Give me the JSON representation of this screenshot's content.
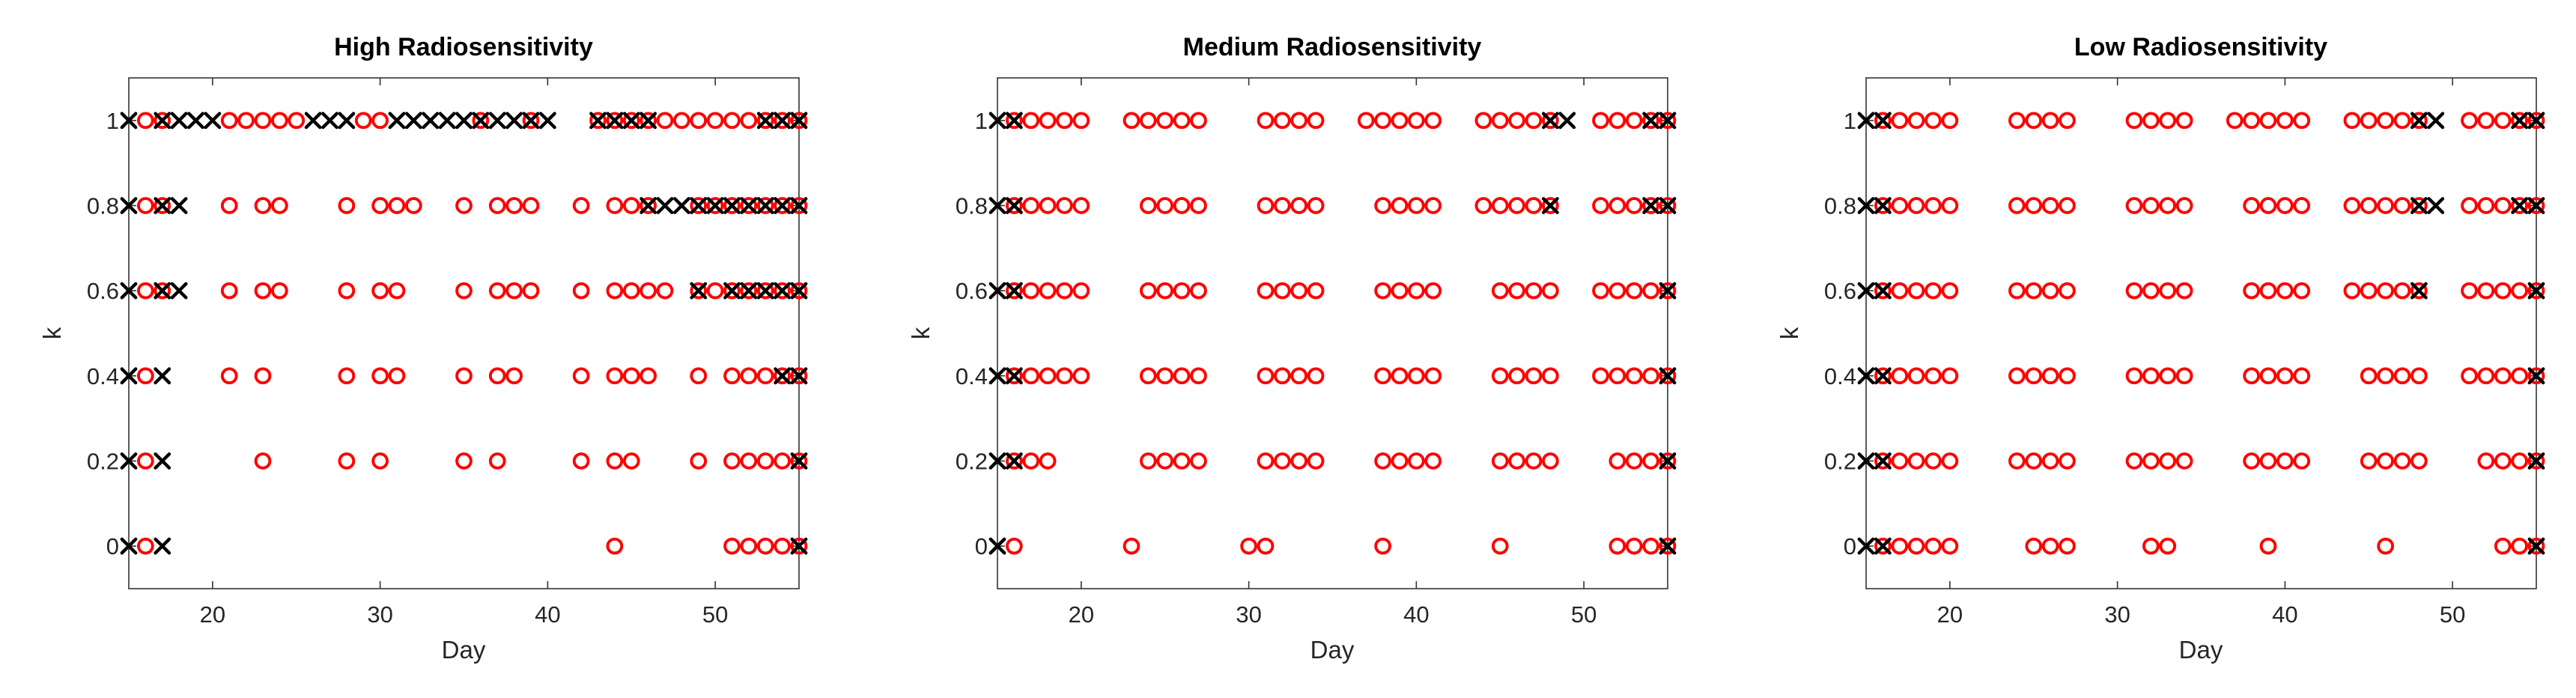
{
  "figure": {
    "background": "#ffffff",
    "axis_color": "#333333",
    "tick_label_color": "#262626",
    "title_color": "#000000",
    "circle_marker_color": "#ff0000",
    "cross_marker_color": "#000000"
  },
  "chart_data": [
    {
      "type": "scatter",
      "title": "High Radiosensitivity",
      "xlabel": "Day",
      "ylabel": "k",
      "xlim": [
        15,
        55
      ],
      "ylim": [
        -0.1,
        1.1
      ],
      "xticks": [
        20,
        30,
        40,
        50
      ],
      "yticks": [
        0,
        0.2,
        0.4,
        0.6,
        0.8,
        1
      ],
      "ytick_labels": [
        "0",
        "0.2",
        "0.4",
        "0.6",
        "0.8",
        "1"
      ],
      "grid": false,
      "legend": "none",
      "series": [
        {
          "name": "red-circles",
          "marker": "o",
          "color": "#ff0000",
          "rows": [
            {
              "k": 1,
              "days": [
                16,
                17,
                21,
                22,
                23,
                24,
                25,
                29,
                30,
                36,
                39,
                43,
                44,
                45,
                46,
                47,
                48,
                49,
                50,
                51,
                52,
                53,
                54,
                55
              ]
            },
            {
              "k": 0.8,
              "days": [
                16,
                17,
                21,
                23,
                24,
                28,
                30,
                31,
                32,
                35,
                37,
                38,
                39,
                42,
                44,
                45,
                46,
                49,
                50,
                51,
                52,
                53,
                54,
                55
              ]
            },
            {
              "k": 0.6,
              "days": [
                16,
                17,
                21,
                23,
                24,
                28,
                30,
                31,
                35,
                37,
                38,
                39,
                42,
                44,
                45,
                46,
                47,
                49,
                50,
                51,
                52,
                53,
                54,
                55
              ]
            },
            {
              "k": 0.4,
              "days": [
                16,
                21,
                23,
                28,
                30,
                31,
                35,
                37,
                38,
                42,
                44,
                45,
                46,
                49,
                51,
                52,
                53,
                54,
                55
              ]
            },
            {
              "k": 0.2,
              "days": [
                16,
                23,
                28,
                30,
                35,
                37,
                42,
                44,
                45,
                49,
                51,
                52,
                53,
                54,
                55
              ]
            },
            {
              "k": 0,
              "days": [
                16,
                44,
                51,
                52,
                53,
                54,
                55
              ]
            }
          ]
        },
        {
          "name": "black-crosses",
          "marker": "x",
          "color": "#000000",
          "rows": [
            {
              "k": 1,
              "days": [
                15,
                17,
                18,
                19,
                20,
                26,
                27,
                28,
                31,
                32,
                33,
                34,
                35,
                36,
                37,
                38,
                39,
                40,
                43,
                44,
                45,
                46,
                53,
                54,
                55
              ]
            },
            {
              "k": 0.8,
              "days": [
                15,
                17,
                18,
                46,
                47,
                48,
                49,
                50,
                51,
                52,
                53,
                54,
                55
              ]
            },
            {
              "k": 0.6,
              "days": [
                15,
                17,
                18,
                49,
                51,
                52,
                53,
                54,
                55
              ]
            },
            {
              "k": 0.4,
              "days": [
                15,
                17,
                54,
                55
              ]
            },
            {
              "k": 0.2,
              "days": [
                15,
                17,
                55
              ]
            },
            {
              "k": 0,
              "days": [
                15,
                17,
                55
              ]
            }
          ]
        }
      ]
    },
    {
      "type": "scatter",
      "title": "Medium Radiosensitivity",
      "xlabel": "Day",
      "ylabel": "k",
      "xlim": [
        15,
        55
      ],
      "ylim": [
        -0.1,
        1.1
      ],
      "xticks": [
        20,
        30,
        40,
        50
      ],
      "yticks": [
        0,
        0.2,
        0.4,
        0.6,
        0.8,
        1
      ],
      "ytick_labels": [
        "0",
        "0.2",
        "0.4",
        "0.6",
        "0.8",
        "1"
      ],
      "grid": false,
      "legend": "none",
      "series": [
        {
          "name": "red-circles",
          "marker": "o",
          "color": "#ff0000",
          "rows": [
            {
              "k": 1,
              "days": [
                16,
                17,
                18,
                19,
                20,
                23,
                24,
                25,
                26,
                27,
                31,
                32,
                33,
                34,
                37,
                38,
                39,
                40,
                41,
                44,
                45,
                46,
                47,
                48,
                51,
                52,
                53,
                54,
                55
              ]
            },
            {
              "k": 0.8,
              "days": [
                16,
                17,
                18,
                19,
                20,
                24,
                25,
                26,
                27,
                31,
                32,
                33,
                34,
                38,
                39,
                40,
                41,
                44,
                45,
                46,
                47,
                48,
                51,
                52,
                53,
                54,
                55
              ]
            },
            {
              "k": 0.6,
              "days": [
                16,
                17,
                18,
                19,
                20,
                24,
                25,
                26,
                27,
                31,
                32,
                33,
                34,
                38,
                39,
                40,
                41,
                45,
                46,
                47,
                48,
                51,
                52,
                53,
                54,
                55
              ]
            },
            {
              "k": 0.4,
              "days": [
                16,
                17,
                18,
                19,
                20,
                24,
                25,
                26,
                27,
                31,
                32,
                33,
                34,
                38,
                39,
                40,
                41,
                45,
                46,
                47,
                48,
                51,
                52,
                53,
                54,
                55
              ]
            },
            {
              "k": 0.2,
              "days": [
                16,
                17,
                18,
                24,
                25,
                26,
                27,
                31,
                32,
                33,
                34,
                38,
                39,
                40,
                41,
                45,
                46,
                47,
                48,
                52,
                53,
                54,
                55
              ]
            },
            {
              "k": 0,
              "days": [
                16,
                23,
                30,
                31,
                38,
                45,
                52,
                53,
                54,
                55
              ]
            }
          ]
        },
        {
          "name": "black-crosses",
          "marker": "x",
          "color": "#000000",
          "rows": [
            {
              "k": 1,
              "days": [
                15,
                16,
                48,
                49,
                54,
                55
              ]
            },
            {
              "k": 0.8,
              "days": [
                15,
                16,
                48,
                54,
                55
              ]
            },
            {
              "k": 0.6,
              "days": [
                15,
                16,
                55
              ]
            },
            {
              "k": 0.4,
              "days": [
                15,
                16,
                55
              ]
            },
            {
              "k": 0.2,
              "days": [
                15,
                16,
                55
              ]
            },
            {
              "k": 0,
              "days": [
                15,
                55
              ]
            }
          ]
        }
      ]
    },
    {
      "type": "scatter",
      "title": "Low Radiosensitivity",
      "xlabel": "Day",
      "ylabel": "k",
      "xlim": [
        15,
        55
      ],
      "ylim": [
        -0.1,
        1.1
      ],
      "xticks": [
        20,
        30,
        40,
        50
      ],
      "yticks": [
        0,
        0.2,
        0.4,
        0.6,
        0.8,
        1
      ],
      "ytick_labels": [
        "0",
        "0.2",
        "0.4",
        "0.6",
        "0.8",
        "1"
      ],
      "grid": false,
      "legend": "none",
      "series": [
        {
          "name": "red-circles",
          "marker": "o",
          "color": "#ff0000",
          "rows": [
            {
              "k": 1,
              "days": [
                16,
                17,
                18,
                19,
                20,
                24,
                25,
                26,
                27,
                31,
                32,
                33,
                34,
                37,
                38,
                39,
                40,
                41,
                44,
                45,
                46,
                47,
                48,
                51,
                52,
                53,
                54,
                55
              ]
            },
            {
              "k": 0.8,
              "days": [
                16,
                17,
                18,
                19,
                20,
                24,
                25,
                26,
                27,
                31,
                32,
                33,
                34,
                38,
                39,
                40,
                41,
                44,
                45,
                46,
                47,
                48,
                51,
                52,
                53,
                54,
                55
              ]
            },
            {
              "k": 0.6,
              "days": [
                16,
                17,
                18,
                19,
                20,
                24,
                25,
                26,
                27,
                31,
                32,
                33,
                34,
                38,
                39,
                40,
                41,
                44,
                45,
                46,
                47,
                48,
                51,
                52,
                53,
                54,
                55
              ]
            },
            {
              "k": 0.4,
              "days": [
                16,
                17,
                18,
                19,
                20,
                24,
                25,
                26,
                27,
                31,
                32,
                33,
                34,
                38,
                39,
                40,
                41,
                45,
                46,
                47,
                48,
                51,
                52,
                53,
                54,
                55
              ]
            },
            {
              "k": 0.2,
              "days": [
                16,
                17,
                18,
                19,
                20,
                24,
                25,
                26,
                27,
                31,
                32,
                33,
                34,
                38,
                39,
                40,
                41,
                45,
                46,
                47,
                48,
                52,
                53,
                54,
                55
              ]
            },
            {
              "k": 0,
              "days": [
                16,
                17,
                18,
                19,
                20,
                25,
                26,
                27,
                32,
                33,
                39,
                46,
                53,
                54,
                55
              ]
            }
          ]
        },
        {
          "name": "black-crosses",
          "marker": "x",
          "color": "#000000",
          "rows": [
            {
              "k": 1,
              "days": [
                15,
                16,
                48,
                49,
                54,
                55
              ]
            },
            {
              "k": 0.8,
              "days": [
                15,
                16,
                48,
                49,
                54,
                55
              ]
            },
            {
              "k": 0.6,
              "days": [
                15,
                16,
                48,
                55
              ]
            },
            {
              "k": 0.4,
              "days": [
                15,
                16,
                55
              ]
            },
            {
              "k": 0.2,
              "days": [
                15,
                16,
                55
              ]
            },
            {
              "k": 0,
              "days": [
                15,
                16,
                55
              ]
            }
          ]
        }
      ]
    }
  ]
}
